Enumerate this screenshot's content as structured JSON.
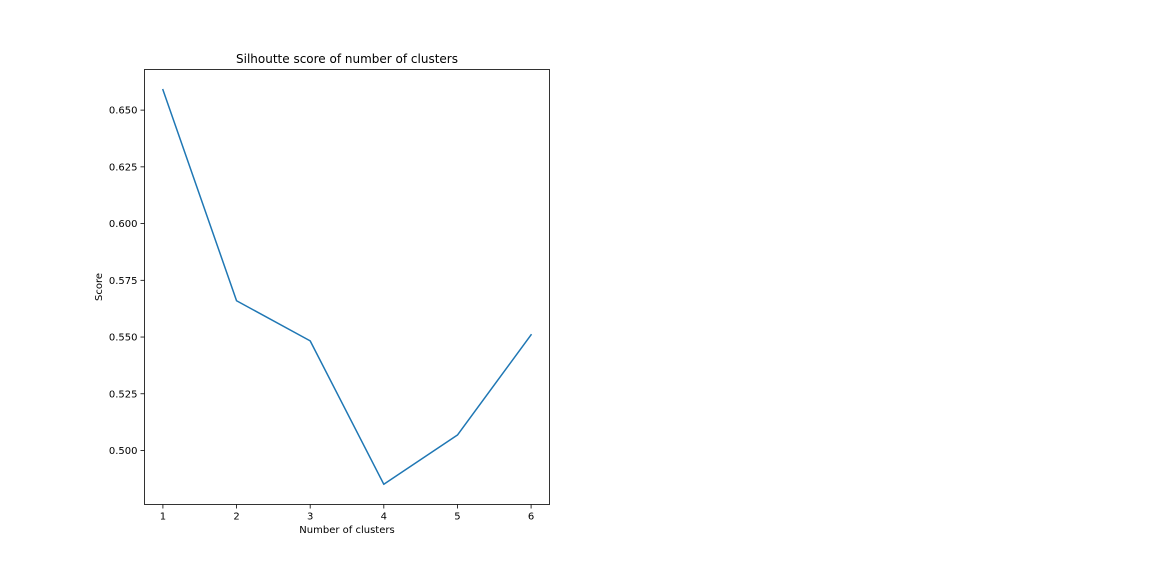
{
  "chart_data": {
    "type": "line",
    "title": "Silhoutte score of number of clusters",
    "xlabel": "Number of clusters",
    "ylabel": "Score",
    "x": [
      1,
      2,
      3,
      4,
      5,
      6
    ],
    "series": [
      {
        "values": [
          0.659,
          0.566,
          0.5483,
          0.4851,
          0.5068,
          0.551
        ],
        "color": "#1f77b4"
      }
    ],
    "xticks": [
      "1",
      "2",
      "3",
      "4",
      "5",
      "6"
    ],
    "yticks": [
      "0.500",
      "0.525",
      "0.550",
      "0.575",
      "0.600",
      "0.625",
      "0.650"
    ],
    "xlim": [
      0.75,
      6.25
    ],
    "ylim": [
      0.4762,
      0.6679
    ],
    "grid": false,
    "legend": false
  }
}
